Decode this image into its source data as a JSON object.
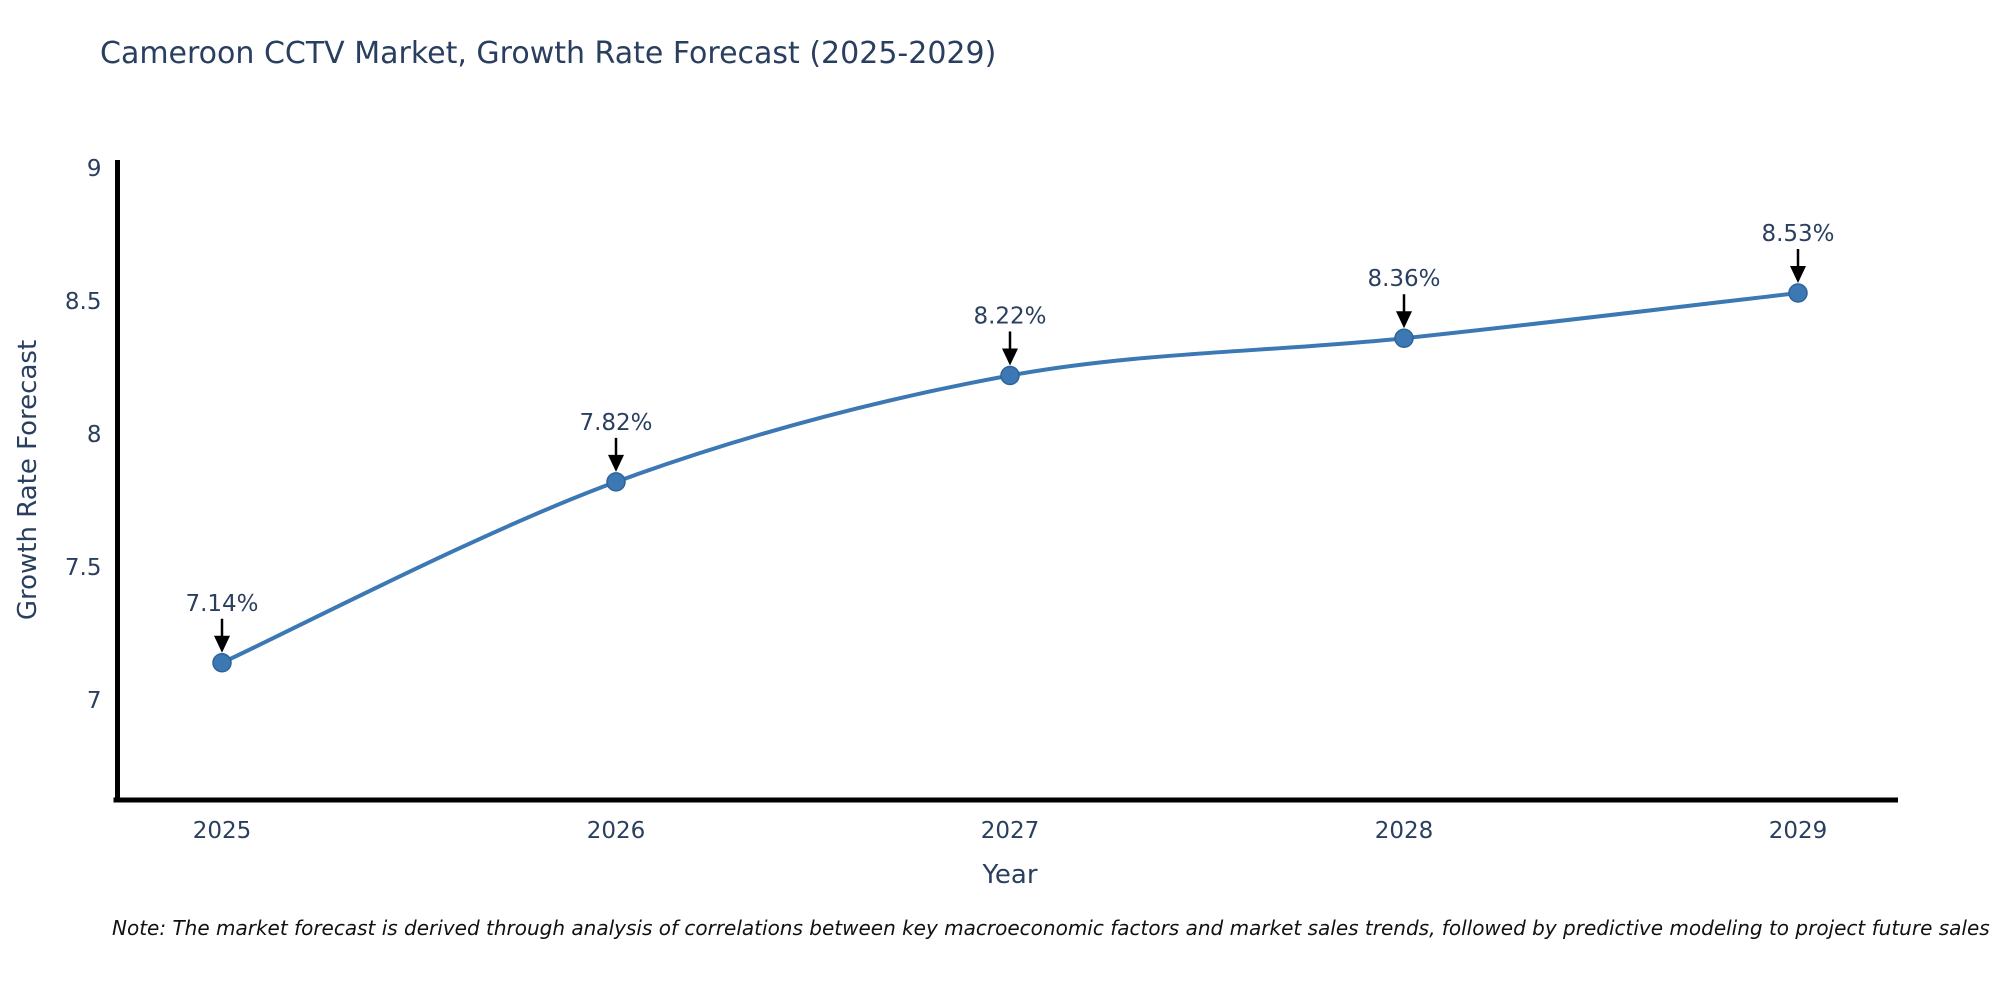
{
  "page": {
    "background": "#ffffff"
  },
  "note": {
    "text": "Note: The market forecast is derived through analysis of correlations between key macroeconomic factors and market sales trends, followed by predictive modeling to project future sales"
  },
  "chart_data": {
    "type": "line",
    "title": "Cameroon CCTV Market, Growth Rate Forecast (2025-2029)",
    "xlabel": "Year",
    "ylabel": "Growth Rate Forecast",
    "categories": [
      "2025",
      "2026",
      "2027",
      "2028",
      "2029"
    ],
    "values": [
      7.14,
      7.82,
      8.22,
      8.36,
      8.53
    ],
    "point_labels": [
      "7.14%",
      "7.82%",
      "8.22%",
      "8.36%",
      "8.53%"
    ],
    "y_tick_labels": [
      "9",
      "8.5",
      "8",
      "7.5",
      "7"
    ],
    "y_tick_values": [
      9,
      8.5,
      8,
      7.5,
      7
    ],
    "ylim": [
      6.62,
      9.05
    ],
    "grid": "off",
    "legend_position": "none",
    "line_color": "#3c78b4",
    "marker_color": "#3c78b4",
    "marker_edge_color": "#2f639a",
    "axis_color": "#000000",
    "text_color": "#2a3f5f",
    "annotation_color": "#2a3f5f",
    "arrow_color": "#000000"
  }
}
